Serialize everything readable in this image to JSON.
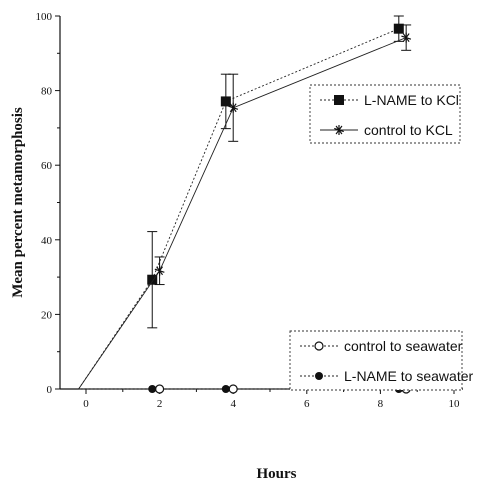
{
  "chart_data": {
    "type": "line",
    "title": "",
    "xlabel": "Hours",
    "ylabel": "Mean percent metamorphosis",
    "xlim": [
      -0.2,
      10
    ],
    "ylim": [
      0,
      100
    ],
    "xticks": [
      0,
      2,
      4,
      6,
      8,
      10
    ],
    "yticks": [
      0,
      20,
      40,
      60,
      80,
      100
    ],
    "grid": false,
    "series": [
      {
        "name": "L-NAME to KCl",
        "marker": "filled-square",
        "line": "dotted",
        "x": [
          -0.2,
          1.8,
          3.8,
          8.5
        ],
        "y": [
          0,
          29.3,
          77.1,
          96.6
        ],
        "err": [
          null,
          12.9,
          7.3,
          3.4
        ]
      },
      {
        "name": "control to KCL",
        "marker": "asterisk",
        "line": "solid",
        "x": [
          -0.2,
          2.0,
          4.0,
          8.7
        ],
        "y": [
          0,
          31.7,
          75.4,
          94.2
        ],
        "err": [
          null,
          3.7,
          9.0,
          3.4
        ]
      },
      {
        "name": "control to seawater",
        "marker": "open-circle",
        "line": "dotted",
        "x": [
          2.0,
          4.0,
          8.7
        ],
        "y": [
          0,
          0,
          0
        ]
      },
      {
        "name": "L-NAME to seawater",
        "marker": "filled-circle",
        "line": "dotted",
        "x": [
          1.8,
          3.8,
          8.5
        ],
        "y": [
          0,
          0,
          0
        ]
      }
    ],
    "baseline_line": {
      "x": [
        -0.2,
        8.0
      ],
      "y": [
        0,
        0
      ]
    },
    "legend_upper": [
      "L-NAME to KCl",
      "control to KCL"
    ],
    "legend_lower": [
      "control to seawater",
      "L-NAME to seawater"
    ],
    "legend_placement": [
      "upper-right",
      "lower-right"
    ]
  }
}
